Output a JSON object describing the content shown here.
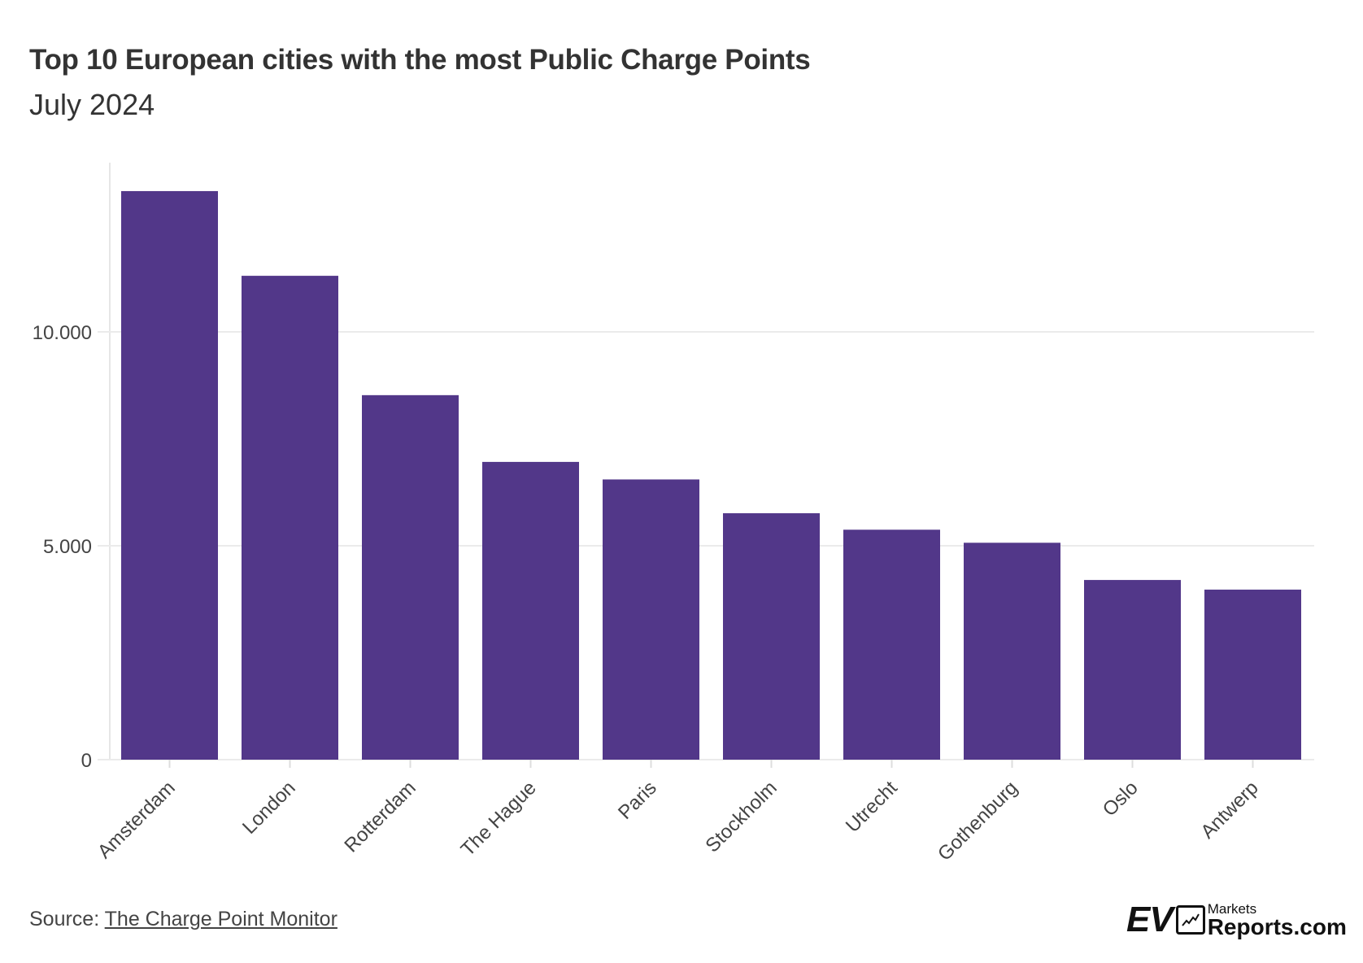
{
  "chart_data": {
    "type": "bar",
    "title": "Top 10 European cities with the most Public Charge Points",
    "subtitle": "July 2024",
    "xlabel": "",
    "ylabel": "",
    "categories": [
      "Amsterdam",
      "London",
      "Rotterdam",
      "The Hague",
      "Paris",
      "Stockholm",
      "Utrecht",
      "Gothenburg",
      "Oslo",
      "Antwerp"
    ],
    "values": [
      13290,
      11310,
      8520,
      6960,
      6550,
      5760,
      5375,
      5070,
      4200,
      3975
    ],
    "ylim": [
      0,
      14000
    ],
    "yticks": [
      0,
      5000,
      10000
    ],
    "ytick_labels": [
      "0",
      "5.000",
      "10.000"
    ],
    "grid": "horizontal",
    "bar_color": "#523789"
  },
  "footer": {
    "source_prefix": "Source: ",
    "source_link": "The Charge Point Monitor",
    "logo": {
      "ev": "EV",
      "markets": "Markets",
      "reports": "Reports.com"
    }
  }
}
